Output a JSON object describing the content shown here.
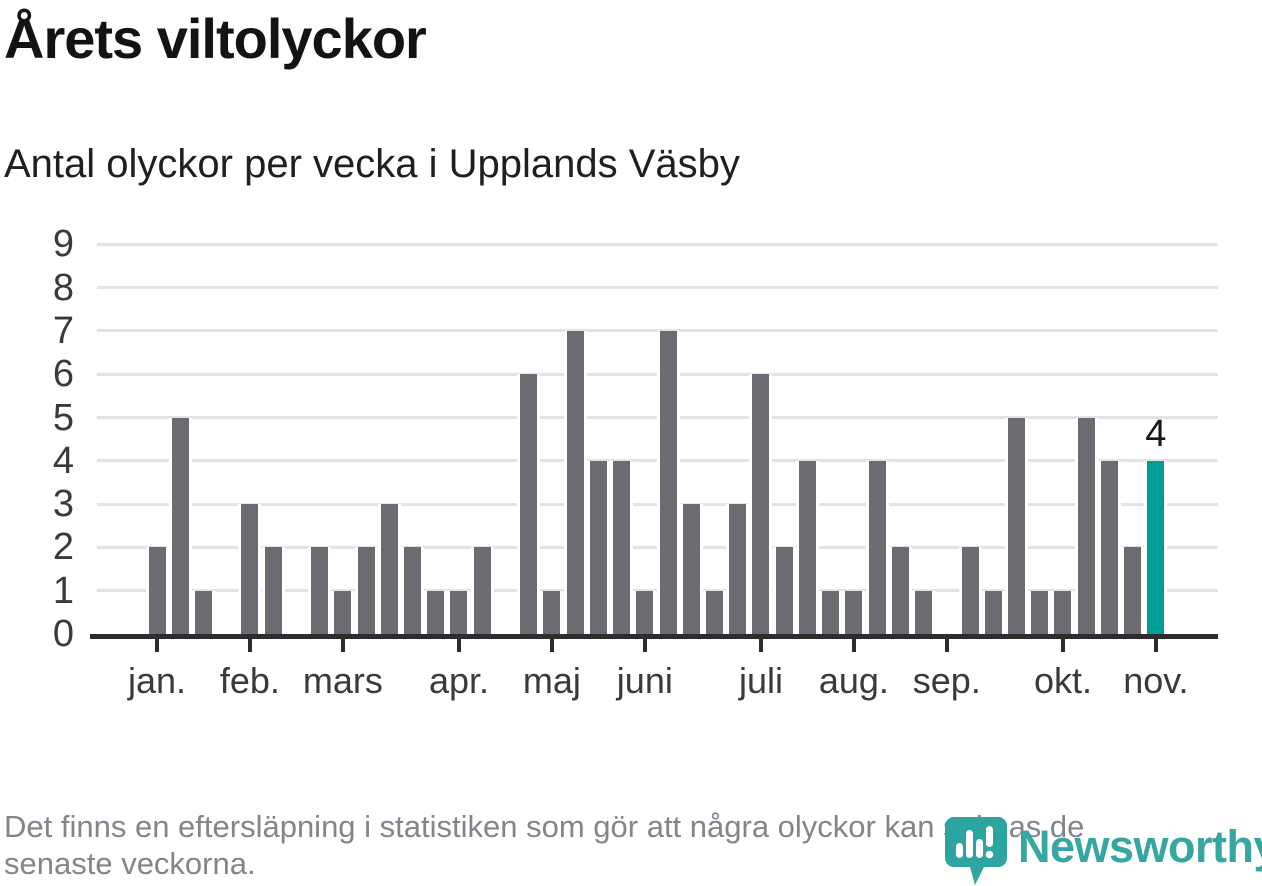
{
  "chart_data": {
    "type": "bar",
    "title": "Årets viltolyckor",
    "subtitle": "Antal olyckor per vecka i Upplands Väsby",
    "x_unit": "vecka",
    "week_start": 1,
    "values": [
      2,
      5,
      1,
      0,
      3,
      2,
      0,
      2,
      1,
      2,
      3,
      2,
      1,
      1,
      2,
      0,
      6,
      1,
      7,
      4,
      4,
      1,
      7,
      3,
      1,
      3,
      6,
      2,
      4,
      1,
      1,
      4,
      2,
      1,
      0,
      2,
      1,
      5,
      1,
      1,
      5,
      4,
      2,
      4
    ],
    "highlight_week": 44,
    "annotation": {
      "text": "4",
      "week": 44,
      "value": 4
    },
    "months": [
      {
        "label": "jan.",
        "week": 1
      },
      {
        "label": "feb.",
        "week": 5
      },
      {
        "label": "mars",
        "week": 9
      },
      {
        "label": "apr.",
        "week": 14
      },
      {
        "label": "maj",
        "week": 18
      },
      {
        "label": "juni",
        "week": 22
      },
      {
        "label": "juli",
        "week": 27
      },
      {
        "label": "aug.",
        "week": 31
      },
      {
        "label": "sep.",
        "week": 35
      },
      {
        "label": "okt.",
        "week": 40
      },
      {
        "label": "nov.",
        "week": 44
      }
    ],
    "ylim": [
      0,
      9
    ],
    "yticks": [
      0,
      1,
      2,
      3,
      4,
      5,
      6,
      7,
      8,
      9
    ],
    "grid": true,
    "legend": "none",
    "colors": {
      "bar": "#6e6a71",
      "highlight": "#009e98",
      "grid": "#e3e3e3",
      "axis": "#2d2d2d",
      "axis_text": "#3a3a3a"
    }
  },
  "footer": {
    "lines": [
      "Det finns en eftersläpning i statistiken som gör att några olyckor kan saknas de",
      "senaste veckorna."
    ],
    "logo_text": "Newsworthy",
    "logo_color": "#2ca49f"
  }
}
